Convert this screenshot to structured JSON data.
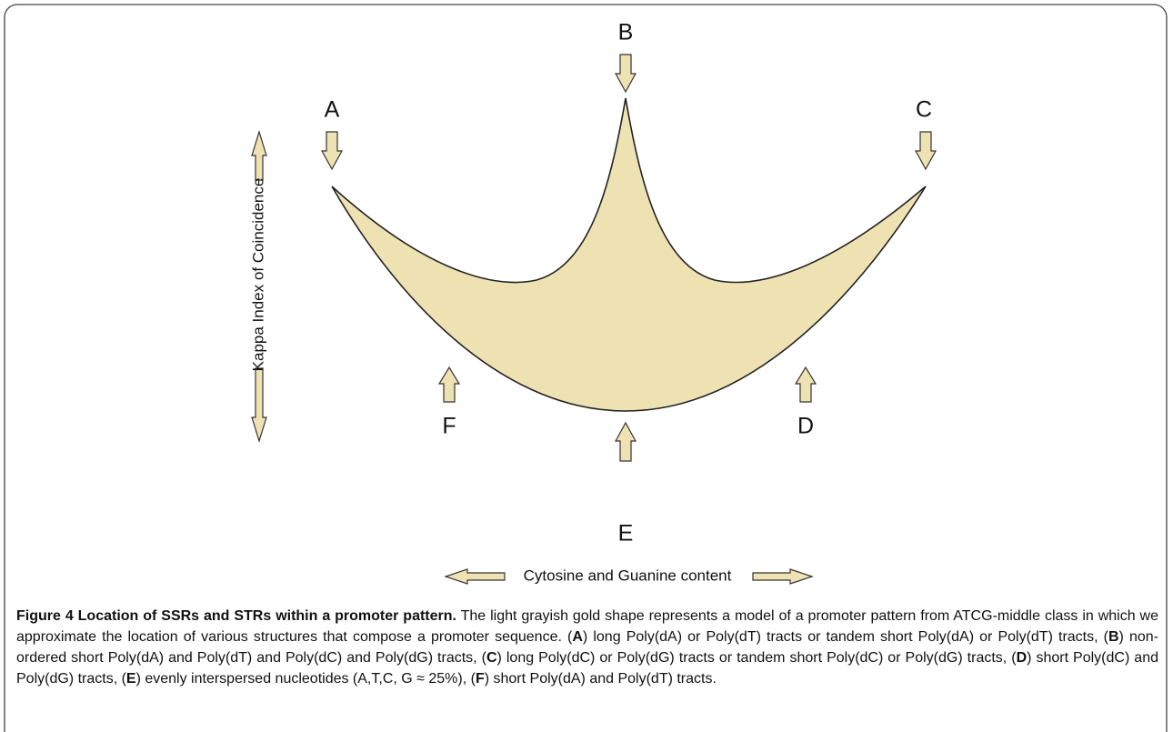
{
  "figure": {
    "labels": {
      "A": "A",
      "B": "B",
      "C": "C",
      "D": "D",
      "E": "E",
      "F": "F"
    },
    "y_axis_label": "Kappa Index of Coincidence",
    "x_axis_label": "Cytosine and Guanine content"
  },
  "caption": {
    "segments": [
      {
        "text": "Figure 4 Location of SSRs and STRs within a promoter pattern.",
        "bold": true
      },
      {
        "text": " The light grayish gold shape represents a model of a promoter pattern from ATCG-middle class in which we approximate the location of various structures that compose a promoter sequence. (",
        "bold": false
      },
      {
        "text": "A",
        "bold": true
      },
      {
        "text": ") long Poly(dA) or Poly(dT) tracts or tandem short Poly(dA) or Poly(dT) tracts, (",
        "bold": false
      },
      {
        "text": "B",
        "bold": true
      },
      {
        "text": ") non-ordered short Poly(dA) and Poly(dT) and Poly(dC) and Poly(dG) tracts, (",
        "bold": false
      },
      {
        "text": "C",
        "bold": true
      },
      {
        "text": ") long Poly(dC) or Poly(dG) tracts or tandem short Poly(dC) or Poly(dG) tracts, (",
        "bold": false
      },
      {
        "text": "D",
        "bold": true
      },
      {
        "text": ") short Poly(dC) and Poly(dG) tracts, (",
        "bold": false
      },
      {
        "text": "E",
        "bold": true
      },
      {
        "text": ") evenly interspersed nucleotides (A,T,C, G ≈ 25%), (",
        "bold": false
      },
      {
        "text": "F",
        "bold": true
      },
      {
        "text": ") short Poly(dA) and Poly(dT) tracts.",
        "bold": false
      }
    ]
  }
}
